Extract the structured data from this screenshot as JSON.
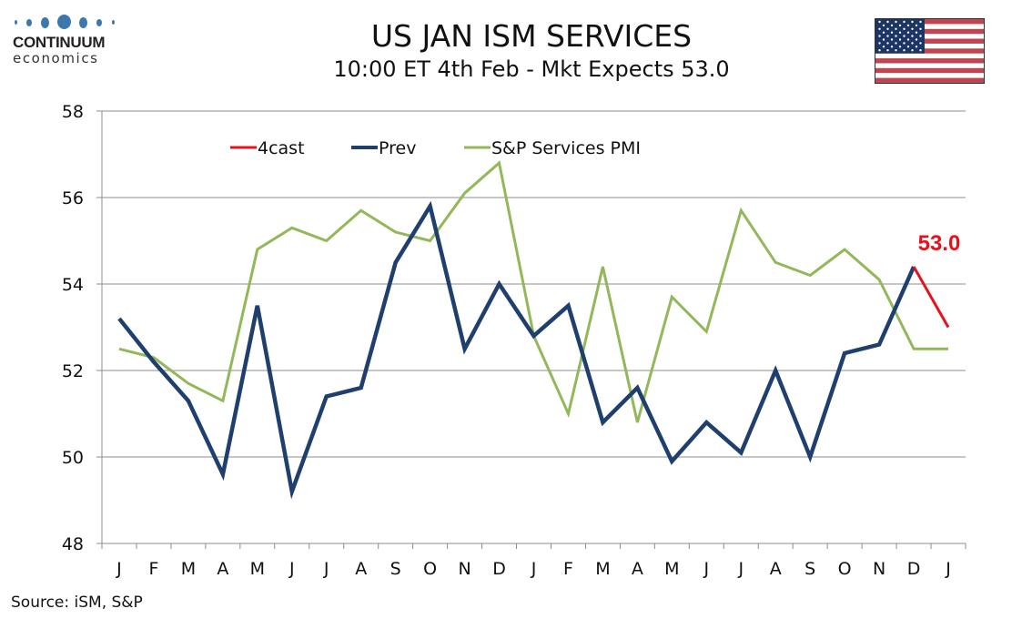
{
  "logo": {
    "name": "CONTINUUM",
    "sub": "economics"
  },
  "header": {
    "title": "US JAN ISM SERVICES",
    "subtitle": "10:00 ET 4th Feb - Mkt Expects 53.0",
    "flag_icon": "us-flag-icon"
  },
  "footer": {
    "source": "Source: iSM, S&P"
  },
  "colors": {
    "forecast": "#e8101a",
    "prev": "#1f3f6e",
    "sp": "#92b85a",
    "grid": "#8c8c8c"
  },
  "chart_data": {
    "type": "line",
    "title": "US JAN ISM SERVICES",
    "subtitle": "10:00 ET 4th Feb - Mkt Expects 53.0",
    "xlabel": "",
    "ylabel": "",
    "ylim": [
      48,
      58
    ],
    "yticks": [
      48,
      50,
      52,
      54,
      56,
      58
    ],
    "grid": true,
    "legend_position": "top-center",
    "categories": [
      "J",
      "F",
      "M",
      "A",
      "M",
      "J",
      "J",
      "A",
      "S",
      "O",
      "N",
      "D",
      "J",
      "F",
      "M",
      "A",
      "M",
      "J",
      "J",
      "A",
      "S",
      "O",
      "N",
      "D",
      "J"
    ],
    "series": [
      {
        "name": "4cast",
        "color": "#e8101a",
        "values": [
          null,
          null,
          null,
          null,
          null,
          null,
          null,
          null,
          null,
          null,
          null,
          null,
          null,
          null,
          null,
          null,
          null,
          null,
          null,
          null,
          null,
          null,
          null,
          54.4,
          53.0
        ]
      },
      {
        "name": "Prev",
        "color": "#1f3f6e",
        "values": [
          53.2,
          52.2,
          51.3,
          49.6,
          53.5,
          49.2,
          51.4,
          51.6,
          54.5,
          55.8,
          52.5,
          54.0,
          52.8,
          53.5,
          50.8,
          51.6,
          49.9,
          50.8,
          50.1,
          52.0,
          50.0,
          52.4,
          52.6,
          54.4,
          null
        ]
      },
      {
        "name": "S&P Services PMI",
        "color": "#92b85a",
        "values": [
          52.5,
          52.3,
          51.7,
          51.3,
          54.8,
          55.3,
          55.0,
          55.7,
          55.2,
          55.0,
          56.1,
          56.8,
          52.8,
          51.0,
          54.4,
          50.8,
          53.7,
          52.9,
          55.7,
          54.5,
          54.2,
          54.8,
          54.1,
          52.5,
          52.5
        ]
      }
    ],
    "annotations": [
      {
        "text": "53.0",
        "series": "4cast",
        "category_index": 24
      }
    ]
  }
}
